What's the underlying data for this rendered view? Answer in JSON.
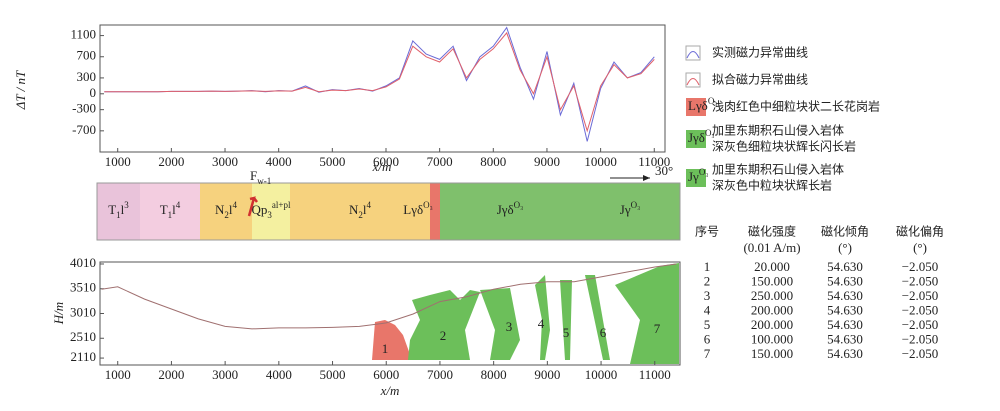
{
  "chart_data": [
    {
      "type": "line",
      "y_label": "ΔT / nT",
      "x_label": "x/m",
      "x": [
        750,
        1000,
        1250,
        1500,
        1750,
        2000,
        2250,
        2500,
        2750,
        3000,
        3250,
        3500,
        3750,
        4000,
        4250,
        4500,
        4750,
        5000,
        5250,
        5500,
        5750,
        6000,
        6250,
        6500,
        6750,
        7000,
        7250,
        7500,
        7750,
        8000,
        8250,
        8500,
        8750,
        9000,
        9250,
        9500,
        9750,
        10000,
        10250,
        10500,
        10750,
        11000
      ],
      "series": [
        {
          "name": "实测磁力异常曲线",
          "color": "#6b6bd6",
          "values": [
            40,
            40,
            40,
            40,
            40,
            45,
            45,
            45,
            50,
            45,
            50,
            60,
            40,
            60,
            50,
            150,
            30,
            80,
            60,
            100,
            50,
            150,
            300,
            1000,
            750,
            650,
            900,
            250,
            700,
            900,
            1250,
            500,
            -100,
            800,
            -400,
            200,
            -900,
            100,
            600,
            300,
            400,
            700
          ]
        },
        {
          "name": "拟合磁力异常曲线",
          "color": "#e0606a",
          "values": [
            40,
            40,
            40,
            40,
            40,
            45,
            45,
            45,
            50,
            45,
            50,
            55,
            45,
            55,
            50,
            120,
            40,
            70,
            60,
            90,
            60,
            130,
            280,
            900,
            700,
            600,
            850,
            300,
            650,
            850,
            1150,
            450,
            0,
            700,
            -300,
            150,
            -700,
            150,
            550,
            300,
            380,
            650
          ]
        }
      ],
      "xlim": [
        670,
        11200
      ],
      "xticks": [
        1000,
        2000,
        3000,
        4000,
        5000,
        6000,
        7000,
        8000,
        9000,
        10000,
        11000
      ],
      "ylim": [
        -1100,
        1300
      ],
      "yticks": [
        -700,
        -300,
        0,
        300,
        700,
        1100
      ]
    },
    {
      "type": "profile",
      "y_label": "H/m",
      "x_label": "x/m",
      "color": "#a07070",
      "x": [
        700,
        1000,
        1500,
        2000,
        2500,
        3000,
        3500,
        4000,
        4500,
        5000,
        5500,
        6000,
        6500,
        7000,
        7500,
        8000,
        8500,
        9000,
        9500,
        10000,
        10500,
        11000,
        11400
      ],
      "values": [
        3500,
        3550,
        3300,
        3100,
        2900,
        2750,
        2700,
        2720,
        2720,
        2730,
        2750,
        2820,
        3000,
        3250,
        3350,
        3500,
        3600,
        3650,
        3650,
        3750,
        3850,
        3950,
        4010
      ],
      "xlim": [
        670,
        11470
      ],
      "xticks": [
        1000,
        2000,
        3000,
        4000,
        5000,
        6000,
        7000,
        8000,
        9000,
        10000,
        11000
      ],
      "ylim": [
        1970,
        4050
      ],
      "yticks": [
        2110,
        2510,
        3010,
        3510,
        4010
      ]
    }
  ],
  "legend": [
    {
      "color": "#e8766a",
      "swatch": [
        {
          "text": "Lγδ"
        },
        {
          "text": "O₃",
          "pos": "super"
        }
      ],
      "lines": [
        "浅肉红色中细粒块状二长花岗岩"
      ]
    },
    {
      "color": "#6cbf5a",
      "swatch": [
        {
          "text": "Jγδ"
        },
        {
          "text": "O₃",
          "pos": "super"
        }
      ],
      "lines": [
        "加里东期积石山侵入岩体",
        "深灰色细粒块状辉长闪长岩"
      ]
    },
    {
      "color": "#6cbf5a",
      "swatch": [
        {
          "text": "Jγ"
        },
        {
          "text": "O₃",
          "pos": "super"
        }
      ],
      "lines": [
        "加里东期积石山侵入岩体",
        "深灰色中粒块状辉长岩"
      ]
    }
  ],
  "strip": {
    "direction": "30°",
    "fault": [
      {
        "text": "F"
      },
      {
        "text": "w-1",
        "pos": "sub"
      }
    ],
    "segments": [
      {
        "color": "#e9c3da",
        "label": [
          {
            "text": "T"
          },
          {
            "text": "1",
            "pos": "sub"
          },
          {
            "text": "l"
          },
          {
            "text": "3",
            "pos": "super"
          }
        ]
      },
      {
        "color": "#f3cde0",
        "label": [
          {
            "text": "T"
          },
          {
            "text": "1",
            "pos": "sub"
          },
          {
            "text": "l"
          },
          {
            "text": "4",
            "pos": "super"
          }
        ]
      },
      {
        "color": "#f6d27e",
        "label": [
          {
            "text": "N"
          },
          {
            "text": "2",
            "pos": "sub"
          },
          {
            "text": "l"
          },
          {
            "text": "4",
            "pos": "super"
          }
        ]
      },
      {
        "color": "#f4f0a0",
        "label": [
          {
            "text": "Qp"
          },
          {
            "text": "3",
            "pos": "sub"
          },
          {
            "text": "al+pl",
            "pos": "super"
          }
        ]
      },
      {
        "color": "#f6d27e",
        "label": [
          {
            "text": "N"
          },
          {
            "text": "2",
            "pos": "sub"
          },
          {
            "text": "l"
          },
          {
            "text": "4",
            "pos": "super"
          }
        ]
      },
      {
        "color": "#e8766a",
        "label": [
          {
            "text": "Lγδ"
          },
          {
            "text": "O₃",
            "pos": "super"
          }
        ]
      },
      {
        "color": "#7fc06c",
        "label": [
          {
            "text": "Jγδ"
          },
          {
            "text": "O₃",
            "pos": "super"
          }
        ]
      },
      {
        "color": "#7fc06c",
        "label": [
          {
            "text": "Jγ"
          },
          {
            "text": "O₃",
            "pos": "super"
          }
        ]
      }
    ]
  },
  "bodies": [
    {
      "label": "1",
      "color": "#e8766a"
    },
    {
      "label": "2",
      "color": "#6cbf5a"
    },
    {
      "label": "3",
      "color": "#6cbf5a"
    },
    {
      "label": "4",
      "color": "#6cbf5a"
    },
    {
      "label": "5",
      "color": "#6cbf5a"
    },
    {
      "label": "6",
      "color": "#6cbf5a"
    },
    {
      "label": "7",
      "color": "#6cbf5a"
    }
  ],
  "table": {
    "header": [
      [
        "序号"
      ],
      [
        "磁化强度",
        "(0.01 A/m)"
      ],
      [
        "磁化倾角",
        "(°)"
      ],
      [
        "磁化偏角",
        "(°)"
      ]
    ],
    "rows": [
      [
        "1",
        "20.000",
        "54.630",
        "−2.050"
      ],
      [
        "2",
        "150.000",
        "54.630",
        "−2.050"
      ],
      [
        "3",
        "250.000",
        "54.630",
        "−2.050"
      ],
      [
        "4",
        "200.000",
        "54.630",
        "−2.050"
      ],
      [
        "5",
        "200.000",
        "54.630",
        "−2.050"
      ],
      [
        "6",
        "100.000",
        "54.630",
        "−2.050"
      ],
      [
        "7",
        "150.000",
        "54.630",
        "−2.050"
      ]
    ]
  }
}
